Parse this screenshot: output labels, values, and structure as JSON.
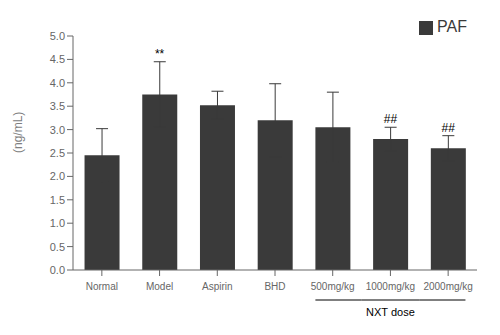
{
  "chart_data": {
    "type": "bar",
    "categories": [
      "Normal",
      "Model",
      "Aspirin",
      "BHD",
      "500mg/kg",
      "1000mg/kg",
      "2000mg/kg"
    ],
    "series": [
      {
        "name": "PAF",
        "color": "#3a3a3a",
        "values": [
          2.45,
          3.75,
          3.52,
          3.2,
          3.05,
          2.8,
          2.6
        ],
        "errors": [
          0.57,
          0.7,
          0.3,
          0.78,
          0.75,
          0.25,
          0.27
        ]
      }
    ],
    "ylabel": "(ng/mL)",
    "ylim": [
      0.0,
      5.0
    ],
    "yticks": [
      {
        "value": 0,
        "label": "0.0"
      },
      0.5,
      {
        "value": 1,
        "label": "1.0"
      },
      1.5,
      {
        "value": 2,
        "label": "2.0"
      },
      2.5,
      {
        "value": 3,
        "label": "3.0"
      },
      3.5,
      {
        "value": 4,
        "label": "4.0"
      },
      4.5,
      {
        "value": 5,
        "label": "5.0"
      }
    ],
    "annotations": [
      {
        "category": "Model",
        "text": "**"
      },
      {
        "category": "1000mg/kg",
        "text": "##"
      },
      {
        "category": "2000mg/kg",
        "text": "##"
      },
      {
        "text": "NXT dose",
        "categories": [
          "500mg/kg",
          "1000mg/kg",
          "2000mg/kg"
        ]
      }
    ],
    "legend": "upper right",
    "grid": false
  }
}
